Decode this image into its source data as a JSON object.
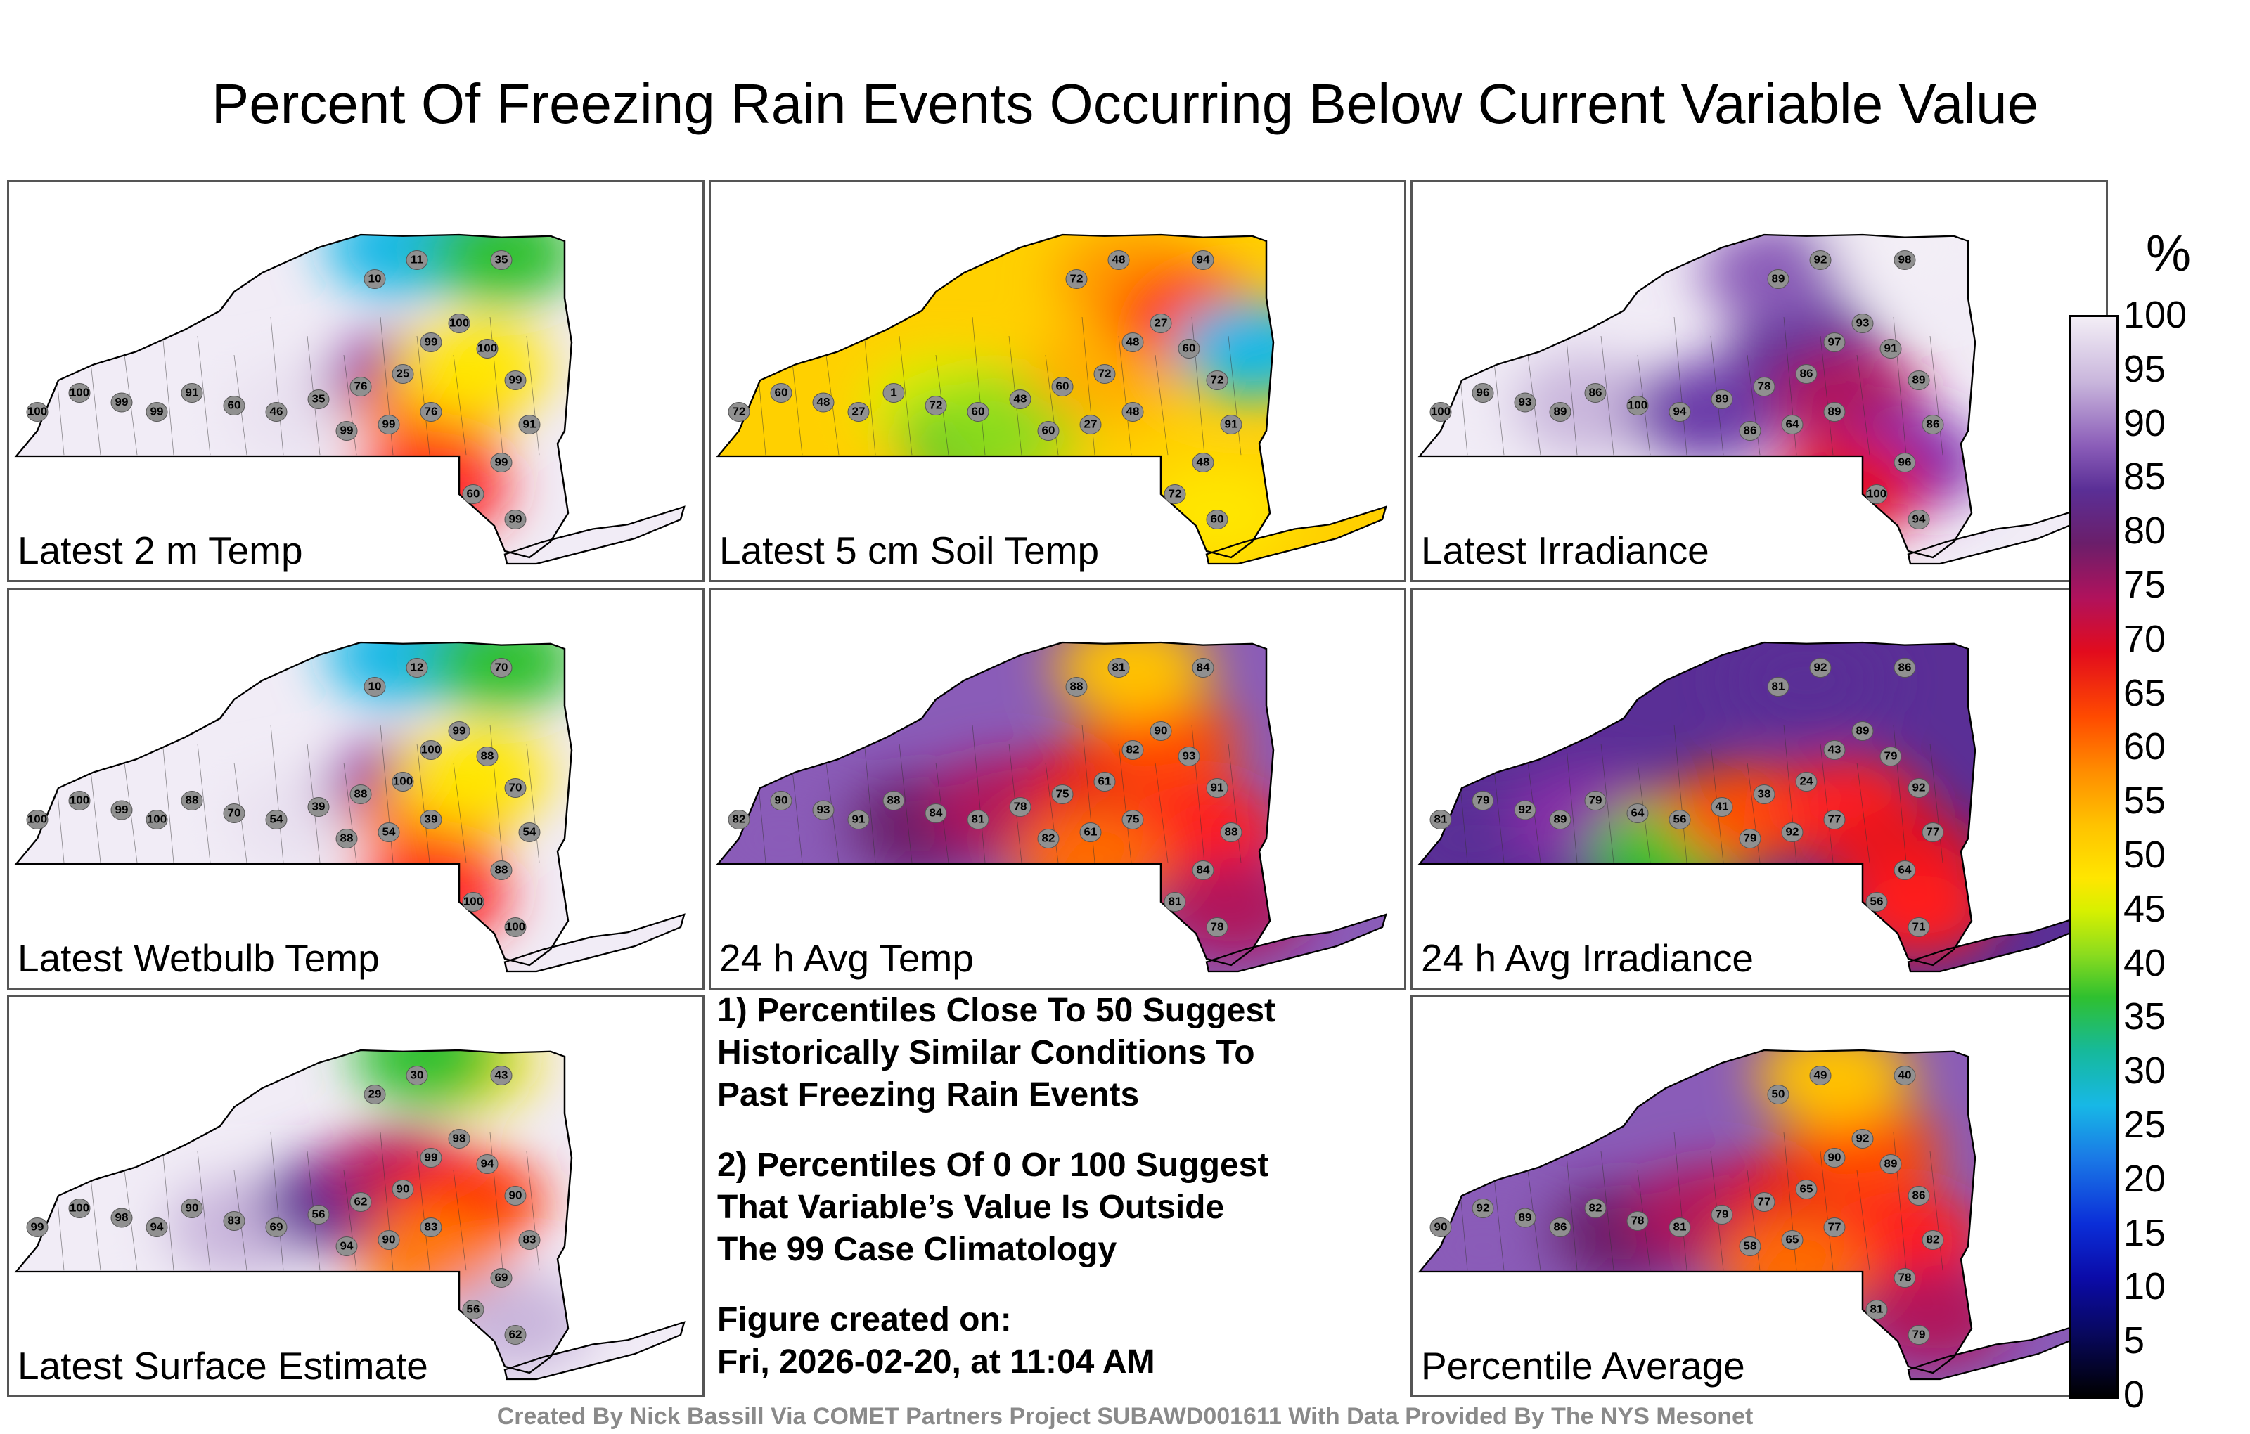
{
  "title": "Percent Of Freezing Rain Events Occurring Below Current Variable Value",
  "panels": [
    {
      "label": "Latest 2 m Temp",
      "theme": "cold-north",
      "stations": [
        "100",
        "100",
        "99",
        "99",
        "91",
        "60",
        "46",
        "35",
        "76",
        "25",
        "99",
        "100",
        "100",
        "99",
        "91",
        "99",
        "60",
        "99",
        "76",
        "99",
        "99",
        "10",
        "11",
        "35"
      ]
    },
    {
      "label": "Latest 5 cm Soil Temp",
      "theme": "mid",
      "stations": [
        "72",
        "60",
        "48",
        "27",
        "1",
        "72",
        "60",
        "48",
        "60",
        "72",
        "48",
        "27",
        "60",
        "72",
        "91",
        "48",
        "72",
        "60",
        "48",
        "27",
        "60",
        "72",
        "48",
        "94"
      ]
    },
    {
      "label": "Latest Irradiance",
      "theme": "high",
      "stations": [
        "100",
        "96",
        "93",
        "89",
        "86",
        "100",
        "94",
        "89",
        "78",
        "86",
        "97",
        "93",
        "91",
        "89",
        "86",
        "96",
        "100",
        "94",
        "89",
        "64",
        "86",
        "89",
        "92",
        "98"
      ]
    },
    {
      "label": "Latest Wetbulb Temp",
      "theme": "cold-north",
      "stations": [
        "100",
        "100",
        "99",
        "100",
        "88",
        "70",
        "54",
        "39",
        "88",
        "100",
        "100",
        "99",
        "88",
        "70",
        "54",
        "88",
        "100",
        "100",
        "39",
        "54",
        "88",
        "10",
        "12",
        "70"
      ]
    },
    {
      "label": "24 h Avg Temp",
      "theme": "warm",
      "stations": [
        "82",
        "90",
        "93",
        "91",
        "88",
        "84",
        "81",
        "78",
        "75",
        "61",
        "82",
        "90",
        "93",
        "91",
        "88",
        "84",
        "81",
        "78",
        "75",
        "61",
        "82",
        "88",
        "81",
        "84"
      ]
    },
    {
      "label": "24 h Avg Irradiance",
      "theme": "warm-mid",
      "stations": [
        "81",
        "79",
        "92",
        "89",
        "79",
        "64",
        "56",
        "41",
        "38",
        "24",
        "43",
        "89",
        "79",
        "92",
        "77",
        "64",
        "56",
        "71",
        "77",
        "92",
        "79",
        "81",
        "92",
        "86"
      ]
    },
    {
      "label": "Latest Surface Estimate",
      "theme": "mixed",
      "stations": [
        "99",
        "100",
        "98",
        "94",
        "90",
        "83",
        "69",
        "56",
        "62",
        "90",
        "99",
        "98",
        "94",
        "90",
        "83",
        "69",
        "56",
        "62",
        "83",
        "90",
        "94",
        "29",
        "30",
        "43"
      ]
    },
    {
      "label": "Percentile Average",
      "theme": "warm",
      "stations": [
        "90",
        "92",
        "89",
        "86",
        "82",
        "78",
        "81",
        "79",
        "77",
        "65",
        "90",
        "92",
        "89",
        "86",
        "82",
        "78",
        "81",
        "79",
        "77",
        "65",
        "58",
        "50",
        "49",
        "40"
      ]
    }
  ],
  "notes": {
    "line1": "1) Percentiles Close To 50 Suggest",
    "line2": "Historically Similar Conditions To",
    "line3": "Past Freezing Rain Events",
    "line4": "2) Percentiles Of 0 Or 100 Suggest",
    "line5": "That Variable’s Value Is Outside",
    "line6": "The 99 Case Climatology",
    "line7": "Figure created on:",
    "line8": "Fri, 2026-02-20, at 11:04 AM"
  },
  "colorbar": {
    "unit": "%",
    "ticks": [
      "100",
      "95",
      "90",
      "85",
      "80",
      "75",
      "70",
      "65",
      "60",
      "55",
      "50",
      "45",
      "40",
      "35",
      "30",
      "25",
      "20",
      "15",
      "10",
      "5",
      "0"
    ]
  },
  "footer": "Created By Nick Bassill Via COMET Partners Project SUBAWD001611 With Data Provided By The NYS Mesonet",
  "colors": {
    "low": "#1a78e6",
    "mid": "#ffe600",
    "high": "#e20b1d",
    "max": "#8a5cb8",
    "panel_border": "#555555"
  }
}
